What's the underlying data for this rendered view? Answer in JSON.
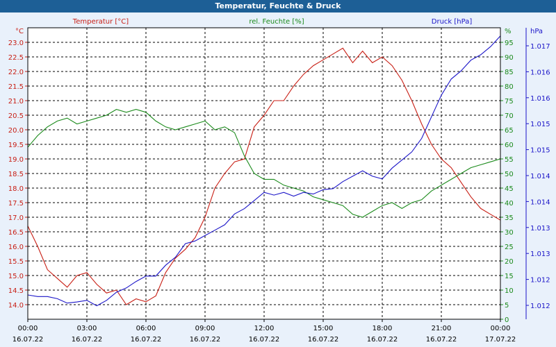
{
  "window": {
    "title": "Temperatur, Feuchte & Druck"
  },
  "colors": {
    "temperature": "#c81e14",
    "humidity": "#1a8a1a",
    "pressure": "#1a14c8",
    "axis": "#000000",
    "plot_bg": "#ffffff",
    "frame_bg": "#e9f1fb",
    "titlebar": "#1d5f96"
  },
  "chart_data": {
    "type": "line",
    "grid": true,
    "legend": "top",
    "x_ticks": [
      {
        "time": "00:00",
        "date": "16.07.22"
      },
      {
        "time": "03:00",
        "date": "16.07.22"
      },
      {
        "time": "06:00",
        "date": "16.07.22"
      },
      {
        "time": "09:00",
        "date": "16.07.22"
      },
      {
        "time": "12:00",
        "date": "16.07.22"
      },
      {
        "time": "15:00",
        "date": "16.07.22"
      },
      {
        "time": "18:00",
        "date": "16.07.22"
      },
      {
        "time": "21:00",
        "date": "16.07.22"
      },
      {
        "time": "00:00",
        "date": "17.07.22"
      }
    ],
    "x_hours": [
      0,
      24
    ],
    "axes": {
      "temperature": {
        "label": "Temperatur [°C]",
        "unit": "°C",
        "range": [
          13.5,
          23.5
        ],
        "ticks": [
          "14.0",
          "14.5",
          "15.0",
          "15.5",
          "16.0",
          "16.5",
          "17.0",
          "17.5",
          "18.0",
          "18.5",
          "19.0",
          "19.5",
          "20.0",
          "20.5",
          "21.0",
          "21.5",
          "22.0",
          "22.5",
          "23.0"
        ]
      },
      "humidity": {
        "label": "rel. Feuchte [%]",
        "unit": "%",
        "range": [
          0,
          100
        ],
        "ticks": [
          "0",
          "5",
          "10",
          "15",
          "20",
          "25",
          "30",
          "35",
          "40",
          "45",
          "50",
          "55",
          "60",
          "65",
          "70",
          "75",
          "80",
          "85",
          "90",
          "95"
        ]
      },
      "pressure": {
        "label": "Druck [hPa]",
        "unit": "hPa",
        "range": [
          1011.8,
          1017.2
        ],
        "ticks": [
          "1.012",
          "1.012",
          "1.013",
          "1.013",
          "1.014",
          "1.014",
          "1.015",
          "1.015",
          "1.016",
          "1.016",
          "1.017"
        ]
      }
    },
    "series": [
      {
        "name": "Temperatur [°C]",
        "axis": "temperature",
        "x": [
          0,
          0.5,
          1,
          1.5,
          2,
          2.5,
          3,
          3.5,
          4,
          4.5,
          5,
          5.5,
          6,
          6.5,
          7,
          7.5,
          8,
          8.5,
          9,
          9.5,
          10,
          10.5,
          11,
          11.5,
          12,
          12.5,
          13,
          13.5,
          14,
          14.5,
          15,
          15.5,
          16,
          16.5,
          17,
          17.5,
          18,
          18.5,
          19,
          19.5,
          20,
          20.5,
          21,
          21.5,
          22,
          22.5,
          23,
          23.5,
          24
        ],
        "values": [
          16.7,
          16.0,
          15.2,
          14.9,
          14.6,
          15.0,
          15.1,
          14.7,
          14.4,
          14.5,
          14.0,
          14.2,
          14.1,
          14.3,
          15.1,
          15.6,
          15.9,
          16.3,
          17.0,
          18.0,
          18.5,
          18.9,
          19.0,
          20.1,
          20.5,
          21.0,
          21.0,
          21.5,
          21.9,
          22.2,
          22.4,
          22.6,
          22.8,
          22.3,
          22.7,
          22.3,
          22.5,
          22.2,
          21.7,
          21.0,
          20.2,
          19.5,
          19.0,
          18.7,
          18.2,
          17.7,
          17.3,
          17.1,
          16.9
        ]
      },
      {
        "name": "rel. Feuchte [%]",
        "axis": "humidity",
        "x": [
          0,
          0.5,
          1,
          1.5,
          2,
          2.5,
          3,
          3.5,
          4,
          4.5,
          5,
          5.5,
          6,
          6.5,
          7,
          7.5,
          8,
          8.5,
          9,
          9.5,
          10,
          10.5,
          11,
          11.5,
          12,
          12.5,
          13,
          13.5,
          14,
          14.5,
          15,
          15.5,
          16,
          16.5,
          17,
          17.5,
          18,
          18.5,
          19,
          19.5,
          20,
          20.5,
          21,
          21.5,
          22,
          22.5,
          23,
          23.5,
          24
        ],
        "values": [
          59,
          63,
          66,
          68,
          69,
          67,
          68,
          69,
          70,
          72,
          71,
          72,
          71,
          68,
          66,
          65,
          66,
          67,
          68,
          65,
          66,
          64,
          56,
          50,
          48,
          48,
          46,
          45,
          44,
          42,
          41,
          40,
          39,
          36,
          35,
          37,
          39,
          40,
          38,
          40,
          41,
          44,
          46,
          48,
          50,
          52,
          53,
          54,
          55
        ]
      },
      {
        "name": "Druck [hPa]",
        "axis": "pressure",
        "x": [
          0,
          0.5,
          1,
          1.5,
          2,
          2.5,
          3,
          3.5,
          4,
          4.5,
          5,
          5.5,
          6,
          6.5,
          7,
          7.5,
          8,
          8.5,
          9,
          9.5,
          10,
          10.5,
          11,
          11.5,
          12,
          12.5,
          13,
          13.5,
          14,
          14.5,
          15,
          15.5,
          16,
          16.5,
          17,
          17.5,
          18,
          18.5,
          19,
          19.5,
          20,
          20.5,
          21,
          21.5,
          22,
          22.5,
          23,
          23.5,
          24
        ],
        "values": [
          1012.25,
          1012.22,
          1012.22,
          1012.18,
          1012.1,
          1012.12,
          1012.15,
          1012.05,
          1012.15,
          1012.3,
          1012.38,
          1012.5,
          1012.6,
          1012.6,
          1012.8,
          1012.95,
          1013.2,
          1013.25,
          1013.35,
          1013.45,
          1013.55,
          1013.75,
          1013.85,
          1014.0,
          1014.15,
          1014.1,
          1014.15,
          1014.08,
          1014.15,
          1014.12,
          1014.2,
          1014.22,
          1014.35,
          1014.45,
          1014.55,
          1014.45,
          1014.4,
          1014.6,
          1014.75,
          1014.9,
          1015.15,
          1015.55,
          1015.95,
          1016.25,
          1016.4,
          1016.6,
          1016.7,
          1016.85,
          1017.05
        ]
      }
    ]
  }
}
